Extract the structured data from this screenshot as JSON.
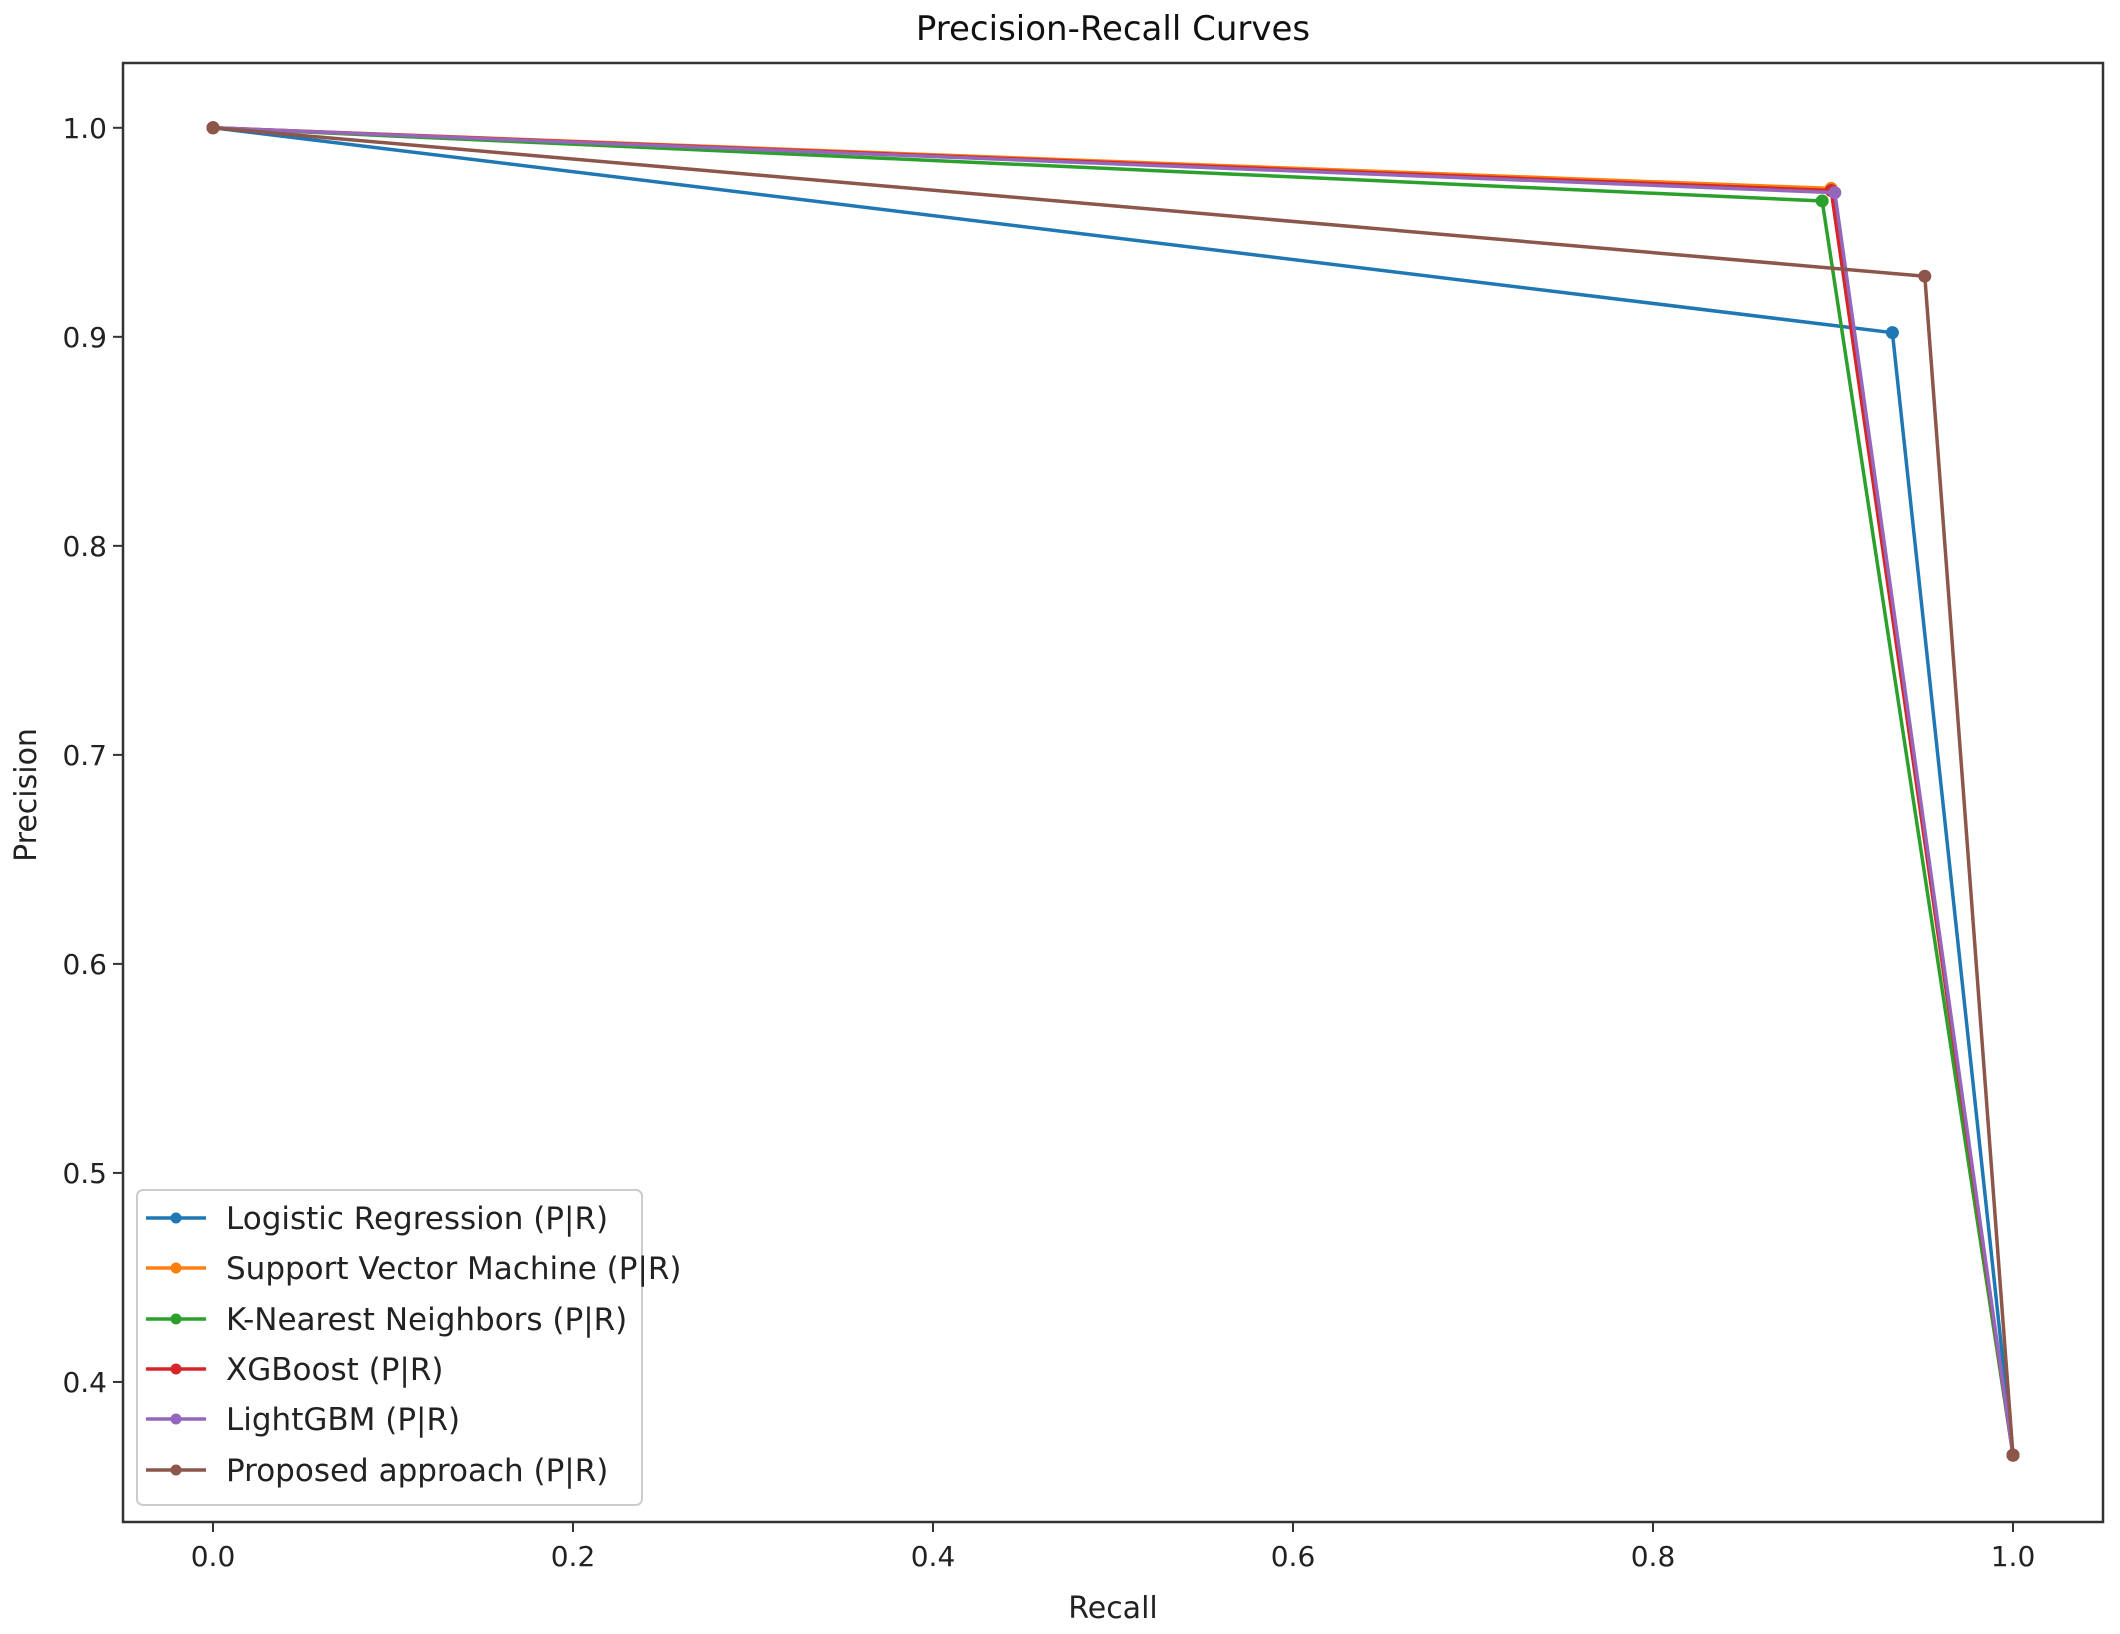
{
  "chart_data": {
    "type": "line",
    "title": "Precision-Recall Curves",
    "xlabel": "Recall",
    "ylabel": "Precision",
    "xlim": [
      -0.05,
      1.05
    ],
    "ylim": [
      0.333,
      1.031
    ],
    "xticks": [
      "0.0",
      "0.2",
      "0.4",
      "0.6",
      "0.8",
      "1.0"
    ],
    "yticks": [
      "0.4",
      "0.5",
      "0.6",
      "0.7",
      "0.8",
      "0.9",
      "1.0"
    ],
    "grid": false,
    "legend_position": "lower-left",
    "series": [
      {
        "name": "Logistic Regression (P|R)",
        "color": "#1f77b4",
        "x": [
          0.0,
          0.933,
          1.0
        ],
        "y": [
          1.0,
          0.902,
          0.365
        ]
      },
      {
        "name": "Support Vector Machine (P|R)",
        "color": "#ff7f0e",
        "x": [
          0.0,
          0.899,
          1.0
        ],
        "y": [
          1.0,
          0.971,
          0.365
        ]
      },
      {
        "name": "K-Nearest Neighbors (P|R)",
        "color": "#2ca02c",
        "x": [
          0.0,
          0.894,
          1.0
        ],
        "y": [
          1.0,
          0.965,
          0.365
        ]
      },
      {
        "name": "XGBoost (P|R)",
        "color": "#d62728",
        "x": [
          0.0,
          0.899,
          1.0
        ],
        "y": [
          1.0,
          0.97,
          0.365
        ]
      },
      {
        "name": "LightGBM (P|R)",
        "color": "#9467bd",
        "x": [
          0.0,
          0.901,
          1.0
        ],
        "y": [
          1.0,
          0.969,
          0.365
        ]
      },
      {
        "name": "Proposed approach (P|R)",
        "color": "#8c564b",
        "x": [
          0.0,
          0.951,
          1.0
        ],
        "y": [
          1.0,
          0.929,
          0.365
        ]
      }
    ]
  }
}
